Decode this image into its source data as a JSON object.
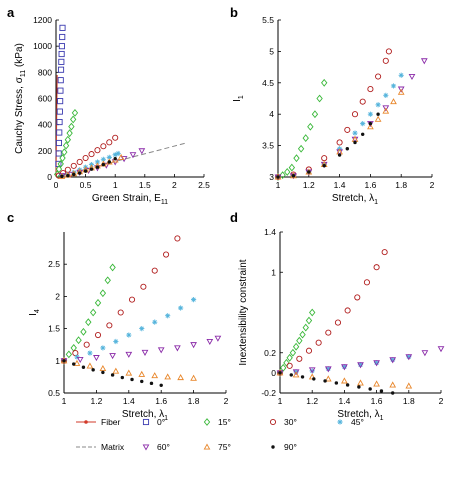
{
  "figure": {
    "marker_styles": {
      "0°": {
        "shape": "square",
        "color": "#3b3bb0"
      },
      "15°": {
        "shape": "diamond",
        "color": "#3ab83a"
      },
      "30°": {
        "shape": "circle",
        "color": "#b01c1c"
      },
      "45°": {
        "shape": "star",
        "color": "#55b4dc"
      },
      "60°": {
        "shape": "triangle-down",
        "color": "#8a2aa8"
      },
      "75°": {
        "shape": "triangle-up",
        "color": "#e8862a"
      },
      "90°": {
        "shape": "dot",
        "color": "#111111"
      },
      "Fiber": {
        "shape": "line-star",
        "color": "#d23a2a"
      },
      "Matrix": {
        "shape": "dashed-line",
        "color": "#888888"
      }
    },
    "legend": {
      "entries": [
        {
          "label": "Fiber",
          "key": "Fiber"
        },
        {
          "label": "0°",
          "key": "0°"
        },
        {
          "label": "15°",
          "key": "15°"
        },
        {
          "label": "30°",
          "key": "30°"
        },
        {
          "label": "45°",
          "key": "45°"
        },
        {
          "label": "Matrix",
          "key": "Matrix"
        },
        {
          "label": "60°",
          "key": "60°"
        },
        {
          "label": "75°",
          "key": "75°"
        },
        {
          "label": "90°",
          "key": "90°"
        }
      ]
    }
  },
  "chart_data": [
    {
      "panel": "a",
      "type": "scatter",
      "xlabel": "Green Strain, E",
      "xlabel_sub": "11",
      "ylabel": "Cauchy Stress, σ",
      "ylabel_sub": "11",
      "ylabel_tail": " (kPa)",
      "xlim": [
        0,
        2.5
      ],
      "ylim": [
        0,
        1200
      ],
      "xticks": [
        {
          "v": 0,
          "label": "0"
        },
        {
          "v": 0.5,
          "label": "0.5"
        },
        {
          "v": 1,
          "label": "1"
        },
        {
          "v": 1.5,
          "label": "1.5"
        },
        {
          "v": 2,
          "label": "2"
        },
        {
          "v": 2.5,
          "label": "2.5"
        }
      ],
      "yticks": [
        {
          "v": 0,
          "label": "0"
        },
        {
          "v": 200,
          "label": "200"
        },
        {
          "v": 400,
          "label": "400"
        },
        {
          "v": 600,
          "label": "600"
        },
        {
          "v": 800,
          "label": "800"
        },
        {
          "v": 1000,
          "label": "1000"
        },
        {
          "v": 1200,
          "label": "1200"
        }
      ],
      "lines": [
        {
          "key": "Fiber",
          "x": [
            0,
            0.02
          ],
          "y": [
            0,
            780
          ]
        },
        {
          "key": "Matrix",
          "x": [
            0,
            2.2
          ],
          "y": [
            0,
            260
          ]
        }
      ],
      "series": [
        {
          "key": "0°",
          "x": [
            0.04,
            0.045,
            0.05,
            0.055,
            0.06,
            0.065,
            0.07,
            0.075,
            0.08,
            0.085,
            0.09,
            0.095,
            0.1,
            0.105,
            0.11
          ],
          "y": [
            100,
            180,
            260,
            340,
            420,
            500,
            580,
            660,
            740,
            820,
            880,
            940,
            1000,
            1070,
            1140
          ]
        },
        {
          "key": "15°",
          "x": [
            0.02,
            0.05,
            0.08,
            0.11,
            0.14,
            0.17,
            0.2,
            0.23,
            0.26,
            0.29,
            0.32
          ],
          "y": [
            20,
            60,
            100,
            145,
            190,
            240,
            285,
            335,
            385,
            440,
            490
          ]
        },
        {
          "key": "30°",
          "x": [
            0.05,
            0.12,
            0.2,
            0.3,
            0.4,
            0.5,
            0.6,
            0.7,
            0.8,
            0.9,
            1.0
          ],
          "y": [
            10,
            30,
            55,
            85,
            115,
            145,
            175,
            205,
            235,
            265,
            300
          ]
        },
        {
          "key": "45°",
          "x": [
            0.1,
            0.2,
            0.3,
            0.4,
            0.5,
            0.6,
            0.7,
            0.8,
            0.9,
            1.0,
            1.05
          ],
          "y": [
            10,
            20,
            35,
            55,
            75,
            95,
            115,
            135,
            150,
            170,
            180
          ]
        },
        {
          "key": "60°",
          "x": [
            0.1,
            0.25,
            0.4,
            0.55,
            0.7,
            0.85,
            1.0,
            1.15,
            1.3,
            1.45
          ],
          "y": [
            10,
            20,
            35,
            50,
            70,
            90,
            115,
            140,
            170,
            200
          ]
        },
        {
          "key": "75°",
          "x": [
            0.1,
            0.2,
            0.3,
            0.4,
            0.5,
            0.6,
            0.7,
            0.8,
            0.9,
            1.0,
            1.1
          ],
          "y": [
            5,
            15,
            25,
            40,
            55,
            70,
            85,
            100,
            115,
            130,
            150
          ]
        },
        {
          "key": "90°",
          "x": [
            0.1,
            0.2,
            0.3,
            0.4,
            0.5,
            0.6,
            0.7,
            0.8,
            0.9,
            1.0
          ],
          "y": [
            5,
            10,
            20,
            30,
            45,
            60,
            75,
            95,
            115,
            140
          ]
        }
      ]
    },
    {
      "panel": "b",
      "type": "scatter",
      "xlabel": "Stretch, λ",
      "xlabel_sub": "1",
      "ylabel": "I",
      "ylabel_sub": "1",
      "ylabel_tail": "",
      "xlim": [
        1,
        2
      ],
      "ylim": [
        3,
        5.5
      ],
      "xticks": [
        {
          "v": 1,
          "label": "1"
        },
        {
          "v": 1.2,
          "label": "1.2"
        },
        {
          "v": 1.4,
          "label": "1.4"
        },
        {
          "v": 1.6,
          "label": "1.6"
        },
        {
          "v": 1.8,
          "label": "1.8"
        },
        {
          "v": 2,
          "label": "2"
        }
      ],
      "yticks": [
        {
          "v": 3,
          "label": "3"
        },
        {
          "v": 3.5,
          "label": "3.5"
        },
        {
          "v": 4,
          "label": "4"
        },
        {
          "v": 4.5,
          "label": "4.5"
        },
        {
          "v": 5,
          "label": "5"
        },
        {
          "v": 5.5,
          "label": "5.5"
        }
      ],
      "lines": [],
      "series": [
        {
          "key": "15°",
          "x": [
            1.0,
            1.03,
            1.06,
            1.09,
            1.12,
            1.15,
            1.18,
            1.21,
            1.24,
            1.27,
            1.3
          ],
          "y": [
            3.0,
            3.03,
            3.08,
            3.15,
            3.3,
            3.45,
            3.62,
            3.8,
            4.0,
            4.25,
            4.5
          ]
        },
        {
          "key": "30°",
          "x": [
            1.0,
            1.1,
            1.2,
            1.3,
            1.4,
            1.45,
            1.5,
            1.55,
            1.6,
            1.65,
            1.7,
            1.72
          ],
          "y": [
            3.0,
            3.04,
            3.12,
            3.3,
            3.55,
            3.75,
            4.0,
            4.2,
            4.4,
            4.6,
            4.85,
            5.0
          ]
        },
        {
          "key": "45°",
          "x": [
            1.0,
            1.1,
            1.2,
            1.3,
            1.4,
            1.5,
            1.55,
            1.6,
            1.65,
            1.7,
            1.75,
            1.8
          ],
          "y": [
            3.0,
            3.02,
            3.08,
            3.2,
            3.45,
            3.7,
            3.85,
            4.0,
            4.15,
            4.3,
            4.45,
            4.62
          ]
        },
        {
          "key": "60°",
          "x": [
            1.0,
            1.1,
            1.2,
            1.3,
            1.4,
            1.5,
            1.6,
            1.7,
            1.8,
            1.87,
            1.95
          ],
          "y": [
            3.0,
            3.02,
            3.08,
            3.2,
            3.4,
            3.6,
            3.85,
            4.1,
            4.4,
            4.6,
            4.85
          ]
        },
        {
          "key": "75°",
          "x": [
            1.0,
            1.1,
            1.2,
            1.3,
            1.4,
            1.5,
            1.6,
            1.65,
            1.7,
            1.75,
            1.8
          ],
          "y": [
            3.0,
            3.02,
            3.08,
            3.2,
            3.4,
            3.6,
            3.8,
            3.92,
            4.05,
            4.2,
            4.35
          ]
        },
        {
          "key": "90°",
          "x": [
            1.0,
            1.1,
            1.2,
            1.3,
            1.4,
            1.45,
            1.5,
            1.55,
            1.6,
            1.65
          ],
          "y": [
            3.0,
            3.02,
            3.08,
            3.18,
            3.35,
            3.45,
            3.55,
            3.68,
            3.85,
            4.0
          ]
        }
      ]
    },
    {
      "panel": "c",
      "type": "scatter",
      "xlabel": "Stretch, λ",
      "xlabel_sub": "1",
      "ylabel": "I",
      "ylabel_sub": "4",
      "ylabel_tail": "",
      "xlim": [
        1,
        2
      ],
      "ylim": [
        0.5,
        3
      ],
      "xticks": [
        {
          "v": 1,
          "label": "1"
        },
        {
          "v": 1.2,
          "label": "1.2"
        },
        {
          "v": 1.4,
          "label": "1.4"
        },
        {
          "v": 1.6,
          "label": "1.6"
        },
        {
          "v": 1.8,
          "label": "1.8"
        },
        {
          "v": 2,
          "label": "2"
        }
      ],
      "yticks": [
        {
          "v": 0.5,
          "label": "0.5"
        },
        {
          "v": 1,
          "label": "1"
        },
        {
          "v": 1.5,
          "label": "1.5"
        },
        {
          "v": 2,
          "label": "2"
        },
        {
          "v": 2.5,
          "label": "2.5"
        }
      ],
      "lines": [],
      "series": [
        {
          "key": "15°",
          "x": [
            1.0,
            1.03,
            1.06,
            1.09,
            1.12,
            1.15,
            1.18,
            1.21,
            1.24,
            1.27,
            1.3
          ],
          "y": [
            1.0,
            1.1,
            1.2,
            1.32,
            1.45,
            1.6,
            1.75,
            1.9,
            2.05,
            2.25,
            2.45
          ]
        },
        {
          "key": "30°",
          "x": [
            1.0,
            1.07,
            1.14,
            1.21,
            1.28,
            1.35,
            1.42,
            1.49,
            1.56,
            1.63,
            1.7
          ],
          "y": [
            1.0,
            1.12,
            1.25,
            1.4,
            1.55,
            1.75,
            1.95,
            2.15,
            2.4,
            2.65,
            2.9
          ]
        },
        {
          "key": "45°",
          "x": [
            1.0,
            1.08,
            1.16,
            1.24,
            1.32,
            1.4,
            1.48,
            1.56,
            1.64,
            1.72,
            1.8
          ],
          "y": [
            1.0,
            1.06,
            1.12,
            1.2,
            1.3,
            1.4,
            1.5,
            1.6,
            1.7,
            1.82,
            1.95
          ]
        },
        {
          "key": "60°",
          "x": [
            1.0,
            1.1,
            1.2,
            1.3,
            1.4,
            1.5,
            1.6,
            1.7,
            1.8,
            1.9,
            1.95
          ],
          "y": [
            1.0,
            1.02,
            1.05,
            1.08,
            1.1,
            1.13,
            1.17,
            1.2,
            1.25,
            1.3,
            1.35
          ]
        },
        {
          "key": "75°",
          "x": [
            1.0,
            1.08,
            1.16,
            1.24,
            1.32,
            1.4,
            1.48,
            1.56,
            1.64,
            1.72,
            1.8
          ],
          "y": [
            1.0,
            0.96,
            0.92,
            0.88,
            0.84,
            0.81,
            0.79,
            0.77,
            0.75,
            0.74,
            0.73
          ]
        },
        {
          "key": "90°",
          "x": [
            1.0,
            1.06,
            1.12,
            1.18,
            1.24,
            1.3,
            1.36,
            1.42,
            1.48,
            1.54,
            1.6
          ],
          "y": [
            1.0,
            0.95,
            0.9,
            0.86,
            0.82,
            0.78,
            0.74,
            0.71,
            0.68,
            0.65,
            0.62
          ]
        }
      ]
    },
    {
      "panel": "d",
      "type": "scatter",
      "xlabel": "Stretch, λ",
      "xlabel_sub": "1",
      "ylabel": "Inextensibility constraint",
      "ylabel_sub": "",
      "ylabel_tail": "",
      "xlim": [
        1,
        2
      ],
      "ylim": [
        -0.2,
        1.4
      ],
      "xticks": [
        {
          "v": 1,
          "label": "1"
        },
        {
          "v": 1.2,
          "label": "1.2"
        },
        {
          "v": 1.4,
          "label": "1.4"
        },
        {
          "v": 1.6,
          "label": "1.6"
        },
        {
          "v": 1.8,
          "label": "1.8"
        },
        {
          "v": 2,
          "label": "2"
        }
      ],
      "yticks": [
        {
          "v": -0.2,
          "label": "-0.2"
        },
        {
          "v": 0,
          "label": "0"
        },
        {
          "v": 0.2,
          "label": "0.2"
        },
        {
          "v": 1,
          "label": "1"
        },
        {
          "v": 1.4,
          "label": "1.4"
        }
      ],
      "lines": [],
      "series": [
        {
          "key": "15°",
          "x": [
            1.0,
            1.02,
            1.04,
            1.06,
            1.08,
            1.1,
            1.12,
            1.14,
            1.16,
            1.18,
            1.2
          ],
          "y": [
            0.0,
            0.05,
            0.1,
            0.15,
            0.2,
            0.26,
            0.32,
            0.38,
            0.45,
            0.52,
            0.6
          ]
        },
        {
          "key": "30°",
          "x": [
            1.0,
            1.06,
            1.12,
            1.18,
            1.24,
            1.3,
            1.36,
            1.42,
            1.48,
            1.54,
            1.6,
            1.65
          ],
          "y": [
            0.0,
            0.07,
            0.14,
            0.22,
            0.3,
            0.4,
            0.5,
            0.62,
            0.75,
            0.9,
            1.05,
            1.2
          ]
        },
        {
          "key": "45°",
          "x": [
            1.0,
            1.1,
            1.2,
            1.3,
            1.4,
            1.5,
            1.6,
            1.7,
            1.8
          ],
          "y": [
            0.0,
            0.01,
            0.02,
            0.04,
            0.06,
            0.08,
            0.1,
            0.13,
            0.16
          ]
        },
        {
          "key": "60°",
          "x": [
            1.0,
            1.1,
            1.2,
            1.3,
            1.4,
            1.5,
            1.6,
            1.7,
            1.8,
            1.9,
            2.0
          ],
          "y": [
            0.0,
            0.01,
            0.03,
            0.04,
            0.06,
            0.08,
            0.1,
            0.13,
            0.16,
            0.2,
            0.24
          ]
        },
        {
          "key": "75°",
          "x": [
            1.0,
            1.1,
            1.2,
            1.3,
            1.4,
            1.5,
            1.6,
            1.7,
            1.8
          ],
          "y": [
            0.0,
            -0.02,
            -0.04,
            -0.06,
            -0.08,
            -0.1,
            -0.11,
            -0.12,
            -0.13
          ]
        },
        {
          "key": "90°",
          "x": [
            1.0,
            1.07,
            1.14,
            1.21,
            1.28,
            1.35,
            1.42,
            1.49,
            1.56,
            1.63,
            1.7
          ],
          "y": [
            0.0,
            -0.02,
            -0.04,
            -0.06,
            -0.08,
            -0.1,
            -0.12,
            -0.14,
            -0.16,
            -0.18,
            -0.2
          ]
        }
      ]
    }
  ]
}
